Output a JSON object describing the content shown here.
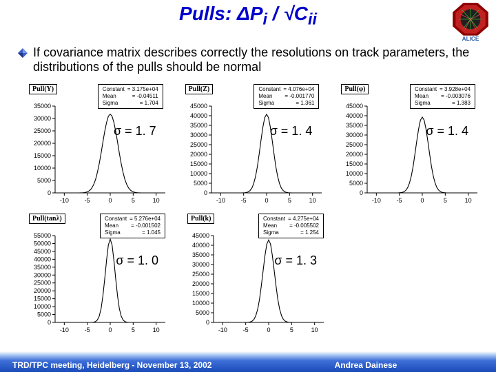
{
  "title_html": "Pulls: ΔP<sub>i</sub> / √C<sub>ii</sub>",
  "bullet_text": "If covariance matrix describes correctly the resolutions on track parameters, the distributions of the pulls should be normal",
  "footer": {
    "left": "TRD/TPC meeting, Heidelberg - November 13, 2002",
    "right": "Andrea Dainese"
  },
  "axis": {
    "xlim": [
      -12,
      12
    ],
    "xticks": [
      -10,
      -5,
      0,
      5,
      10
    ],
    "tick_color": "#000",
    "axis_color": "#000",
    "border_color": "#000",
    "fill_color": "#ffffff",
    "label_fontsize": 9
  },
  "curve": {
    "stroke": "#000000",
    "width": 1.1
  },
  "charts": [
    {
      "id": "pull-y",
      "plot_title": "Pull(Y)",
      "stats": {
        "Constant": "3.175e+04",
        "Mean": "-0.04511",
        "Sigma": "1.704"
      },
      "sigma_label": "σ = 1. 7",
      "ymax": 35000,
      "ytick_step": 5000,
      "gauss": {
        "amp": 31750,
        "mean": 0,
        "sigma": 1.7,
        "points": 60
      }
    },
    {
      "id": "pull-z",
      "plot_title": "Pull(Z)",
      "stats": {
        "Constant": "4.076e+04",
        "Mean": "-0.001770",
        "Sigma": "1.361"
      },
      "sigma_label": "σ = 1. 4",
      "ymax": 45000,
      "ytick_step": 5000,
      "gauss": {
        "amp": 40760,
        "mean": 0,
        "sigma": 1.36,
        "points": 60
      }
    },
    {
      "id": "pull-phi",
      "plot_title": "Pull(φ)",
      "stats": {
        "Constant": "3.928e+04",
        "Mean": "-0.003076",
        "Sigma": "1.383"
      },
      "sigma_label": "σ = 1. 4",
      "ymax": 45000,
      "ytick_step": 5000,
      "gauss": {
        "amp": 39280,
        "mean": 0,
        "sigma": 1.38,
        "points": 60
      }
    },
    {
      "id": "pull-tanl",
      "plot_title": "Pull(tanλ)",
      "stats": {
        "Constant": "5.276e+04",
        "Mean": "-0.001502",
        "Sigma": "1.045"
      },
      "sigma_label": "σ = 1. 0",
      "ymax": 55000,
      "ytick_step": 5000,
      "gauss": {
        "amp": 52760,
        "mean": 0,
        "sigma": 1.05,
        "points": 60
      }
    },
    {
      "id": "pull-k",
      "plot_title": "Pull(k)",
      "stats": {
        "Constant": "4.275e+04",
        "Mean": "-0.005502",
        "Sigma": "1.254"
      },
      "sigma_label": "σ = 1. 3",
      "ymax": 45000,
      "ytick_step": 5000,
      "gauss": {
        "amp": 42750,
        "mean": 0,
        "sigma": 1.25,
        "points": 60
      }
    }
  ]
}
